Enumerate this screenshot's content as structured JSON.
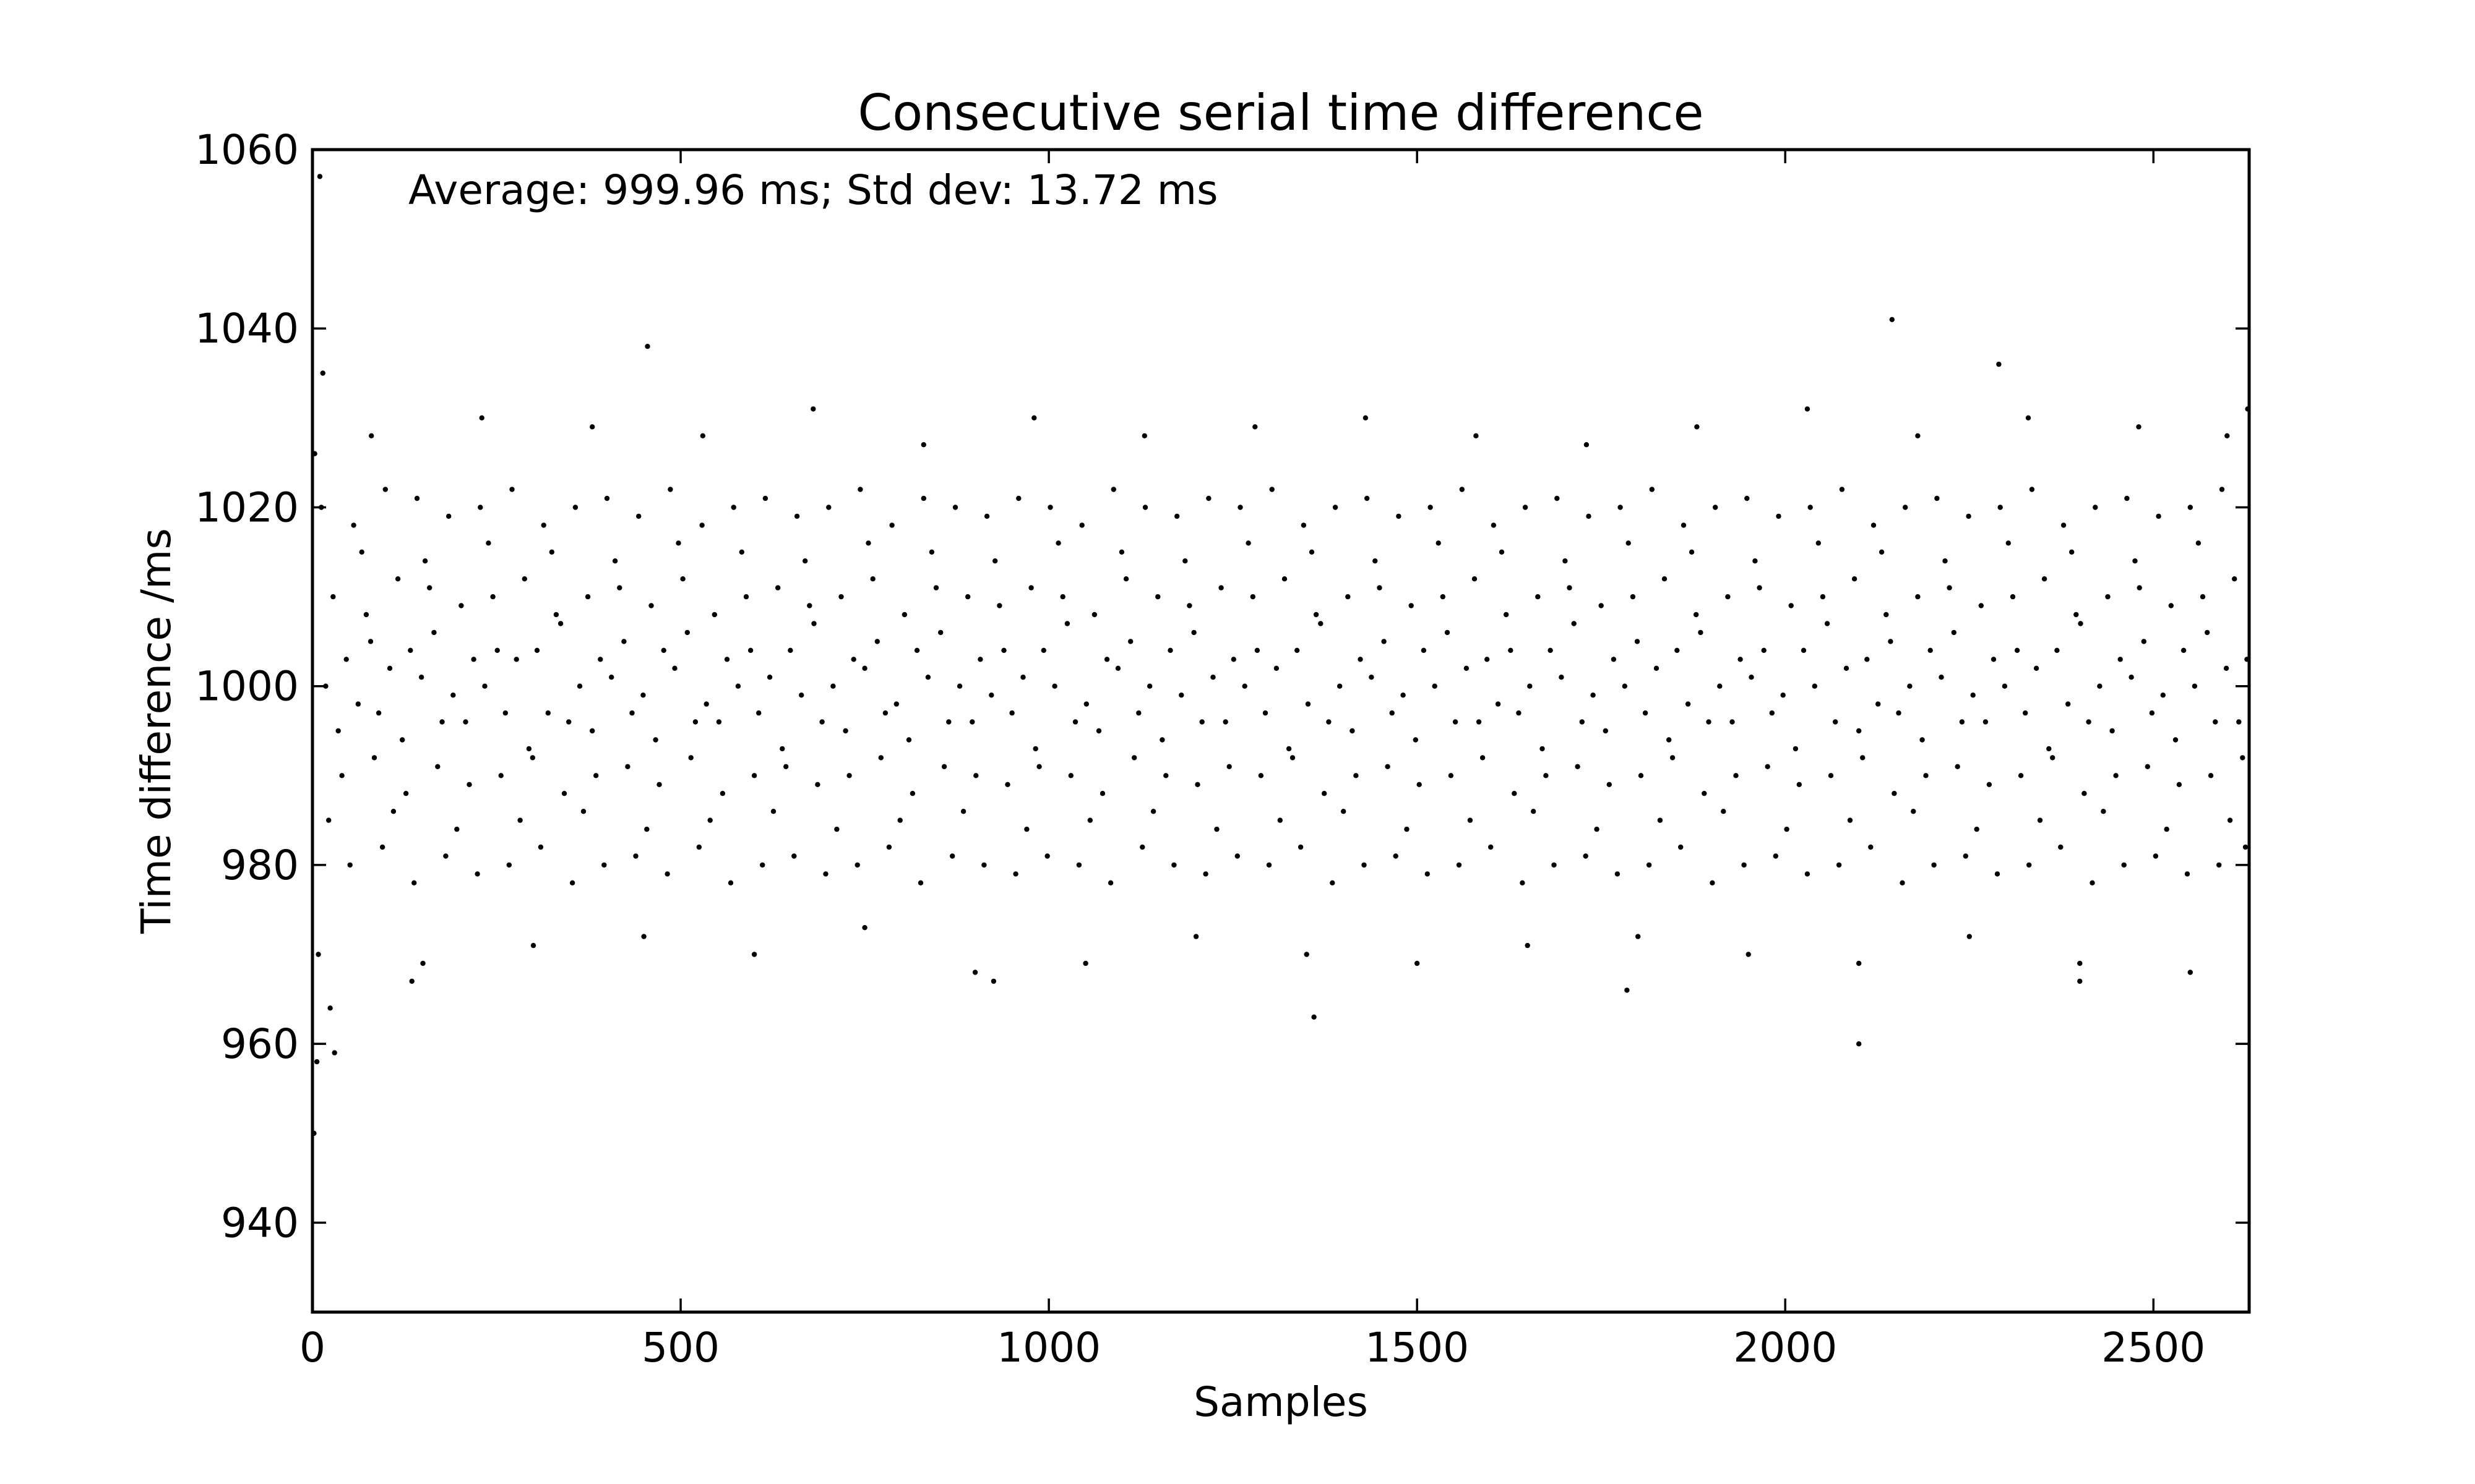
{
  "colors": {
    "background": "#ffffff",
    "marker": "#000000",
    "axes": "#000000"
  },
  "chart_data": {
    "type": "scatter",
    "title": "Consecutive serial time difference",
    "xlabel": "Samples",
    "ylabel": "Time difference /ms",
    "annotation": "Average: 999.96 ms;  Std dev: 13.72 ms",
    "xlim": [
      0,
      2630
    ],
    "ylim": [
      930,
      1060
    ],
    "xticks": [
      0,
      500,
      1000,
      1500,
      2000,
      2500
    ],
    "xtick_labels": [
      "0",
      "500",
      "1000",
      "1500",
      "2000",
      "2500"
    ],
    "yticks": [
      940,
      960,
      980,
      1000,
      1020,
      1040,
      1060
    ],
    "ytick_labels": [
      "940",
      "960",
      "980",
      "1000",
      "1020",
      "1040",
      "1060"
    ],
    "grid": false,
    "legend": "none",
    "marker": "point",
    "sample_count": 2630,
    "average": 999.96,
    "std_dev": 13.72,
    "notable_points": [
      {
        "x": 2,
        "y": 950
      },
      {
        "x": 3,
        "y": 1026
      },
      {
        "x": 6,
        "y": 958
      },
      {
        "x": 10,
        "y": 1057
      },
      {
        "x": 14,
        "y": 1035
      },
      {
        "x": 24,
        "y": 964
      },
      {
        "x": 30,
        "y": 959
      },
      {
        "x": 135,
        "y": 967
      },
      {
        "x": 455,
        "y": 1038
      },
      {
        "x": 925,
        "y": 967
      },
      {
        "x": 1360,
        "y": 963
      },
      {
        "x": 1785,
        "y": 966
      },
      {
        "x": 2100,
        "y": 960
      },
      {
        "x": 2145,
        "y": 1041
      },
      {
        "x": 2290,
        "y": 1036
      },
      {
        "x": 2400,
        "y": 967
      },
      {
        "x": 2628,
        "y": 1031
      }
    ],
    "series": [
      {
        "x": [
          18,
          62,
          105,
          148,
          191,
          234,
          277,
          320,
          363,
          406,
          449,
          492,
          535,
          578,
          621,
          664,
          707,
          750,
          793,
          836,
          879,
          922,
          965,
          1008,
          1051,
          1094,
          1137,
          1180,
          1223,
          1266,
          1309,
          1352,
          1395,
          1438,
          1481,
          1524,
          1567,
          1610,
          1653,
          1696,
          1739,
          1782,
          1825,
          1868,
          1911,
          1954,
          1997,
          2040,
          2083,
          2126,
          2169,
          2212,
          2255,
          2298,
          2341,
          2384,
          2427,
          2470,
          2513,
          2556,
          2599,
          40,
          84,
          127,
          170,
          213,
          256,
          299,
          342,
          385,
          428,
          471,
          514,
          557,
          600,
          643,
          686,
          729,
          772,
          815,
          858,
          901,
          944,
          987,
          1030,
          1073,
          1116,
          1159,
          1202,
          1245,
          1288,
          1331,
          1374,
          1417,
          1460,
          1503,
          1546,
          1589,
          1632,
          1675,
          1718,
          1761,
          1804,
          1847,
          1890,
          1933,
          1976,
          2019,
          2062,
          2105,
          2148,
          2191,
          2234,
          2277,
          2320,
          2363,
          2406,
          2449,
          2492,
          2535,
          2578,
          2621,
          28,
          73,
          116,
          159,
          202,
          245,
          288,
          331,
          374,
          417,
          460,
          503,
          546,
          589,
          632,
          675,
          718,
          761,
          804,
          847,
          890,
          933,
          976,
          1019,
          1062,
          1105,
          1148,
          1191,
          1234,
          1277,
          1320,
          1363,
          1406,
          1449,
          1492,
          1535,
          1578,
          1621,
          1664,
          1707,
          1750,
          1793,
          1836,
          1879,
          1922,
          1965,
          2008,
          2051,
          2094,
          2137,
          2180,
          2223,
          2266,
          2309,
          2352,
          2395,
          2438,
          2481,
          2524,
          2567,
          2610,
          51,
          95,
          138,
          181,
          224,
          267,
          310,
          353,
          396,
          439,
          482,
          525,
          568,
          611,
          654,
          697,
          740,
          783,
          826,
          869,
          912,
          955,
          998,
          1041,
          1084,
          1127,
          1170,
          1213,
          1256,
          1299,
          1342,
          1385,
          1428,
          1471,
          1514,
          1557,
          1600,
          1643,
          1686,
          1729,
          1772,
          1815,
          1858,
          1901,
          1944,
          1987,
          2030,
          2073,
          2116,
          2159,
          2202,
          2245,
          2288,
          2331,
          2374,
          2417,
          2460,
          2503,
          2546,
          2589,
          2625,
          12,
          56,
          99,
          142,
          185,
          228,
          271,
          314,
          357,
          400,
          443,
          486,
          529,
          572,
          615,
          658,
          701,
          744,
          787,
          830,
          873,
          916,
          959,
          1002,
          1045,
          1088,
          1131,
          1174,
          1217,
          1260,
          1303,
          1346,
          1389,
          1432,
          1475,
          1518,
          1561,
          1604,
          1647,
          1690,
          1733,
          1776,
          1819,
          1862,
          1905,
          1948,
          1991,
          2034,
          2077,
          2120,
          2163,
          2206,
          2249,
          2292,
          2335,
          2378,
          2421,
          2464,
          2507,
          2550,
          2593,
          35,
          79,
          122,
          165,
          208,
          251,
          294,
          337,
          380,
          423,
          466,
          509,
          552,
          595,
          638,
          681,
          724,
          767,
          810,
          853,
          896,
          939,
          982,
          1025,
          1068,
          1111,
          1154,
          1197,
          1240,
          1283,
          1326,
          1369,
          1412,
          1455,
          1498,
          1541,
          1584,
          1627,
          1670,
          1713,
          1756,
          1799,
          1842,
          1885,
          1928,
          1971,
          2014,
          2057,
          2100,
          2143,
          2186,
          2229,
          2272,
          2315,
          2358,
          2401,
          2444,
          2487,
          2530,
          2573,
          2616,
          22,
          67,
          110,
          153,
          196,
          239,
          282,
          325,
          368,
          411,
          454,
          497,
          540,
          583,
          626,
          669,
          712,
          755,
          798,
          841,
          884,
          927,
          970,
          1013,
          1056,
          1099,
          1142,
          1185,
          1228,
          1271,
          1314,
          1357,
          1400,
          1443,
          1486,
          1529,
          1572,
          1615,
          1658,
          1701,
          1744,
          1787,
          1830,
          1873,
          1916,
          1959,
          2002,
          2045,
          2088,
          2131,
          2174,
          2217,
          2260,
          2303,
          2346,
          2389,
          2432,
          2475,
          2518,
          2561,
          2604,
          46,
          90,
          133,
          176,
          219,
          262,
          305,
          348,
          391,
          434,
          477,
          520,
          563,
          606,
          649,
          692,
          735,
          778,
          821,
          864,
          907,
          950,
          993,
          1036,
          1079,
          1122,
          1165,
          1208,
          1251,
          1294,
          1337,
          1380,
          1423,
          1466,
          1509,
          1552,
          1595,
          1638,
          1681,
          1724,
          1767,
          1810,
          1853,
          1896,
          1939,
          1982,
          2025,
          2068,
          2111,
          2154,
          2197,
          2240,
          2283,
          2326,
          2369,
          2412,
          2455,
          2498,
          2541,
          2584,
          2627,
          8,
          150,
          300,
          450,
          600,
          750,
          900,
          1050,
          1200,
          1350,
          1500,
          1650,
          1800,
          1950,
          2100,
          2250,
          2400,
          2550,
          80,
          230,
          380,
          530,
          680,
          830,
          980,
          1130,
          1280,
          1430,
          1580,
          1730,
          1880,
          2030,
          2180,
          2330,
          2480,
          2600
        ],
        "y": [
          1000,
          998,
          1002,
          1001,
          999,
          1000,
          1003,
          997,
          1000,
          1001,
          999,
          1002,
          998,
          1000,
          1001,
          999,
          1000,
          1002,
          998,
          1001,
          1000,
          999,
          1001,
          1000,
          998,
          1002,
          1000,
          999,
          1001,
          1000,
          1002,
          998,
          1000,
          1001,
          999,
          1000,
          1002,
          998,
          1000,
          1001,
          999,
          1000,
          1002,
          998,
          1000,
          1001,
          999,
          1000,
          1002,
          998,
          1000,
          1001,
          999,
          1000,
          1002,
          998,
          1000,
          1001,
          999,
          1000,
          1002,
          990,
          992,
          988,
          991,
          989,
          990,
          992,
          988,
          990,
          991,
          989,
          992,
          988,
          990,
          991,
          989,
          990,
          992,
          988,
          991,
          990,
          989,
          991,
          990,
          988,
          992,
          990,
          989,
          991,
          990,
          992,
          988,
          990,
          991,
          989,
          990,
          992,
          988,
          990,
          991,
          989,
          990,
          992,
          988,
          990,
          991,
          989,
          990,
          992,
          988,
          990,
          991,
          989,
          990,
          992,
          988,
          990,
          991,
          989,
          990,
          992,
          1010,
          1008,
          1012,
          1011,
          1009,
          1010,
          1012,
          1008,
          1010,
          1011,
          1009,
          1012,
          1008,
          1010,
          1011,
          1009,
          1010,
          1012,
          1008,
          1011,
          1010,
          1009,
          1011,
          1010,
          1008,
          1012,
          1010,
          1009,
          1011,
          1010,
          1012,
          1008,
          1010,
          1011,
          1009,
          1010,
          1012,
          1008,
          1010,
          1011,
          1009,
          1010,
          1012,
          1008,
          1010,
          1011,
          1009,
          1010,
          1012,
          1008,
          1010,
          1011,
          1009,
          1010,
          1012,
          1008,
          1010,
          1011,
          1009,
          1010,
          1012,
          980,
          982,
          978,
          981,
          979,
          980,
          982,
          978,
          980,
          981,
          979,
          982,
          978,
          980,
          981,
          979,
          980,
          982,
          978,
          981,
          980,
          979,
          981,
          980,
          978,
          982,
          980,
          979,
          981,
          980,
          982,
          978,
          980,
          981,
          979,
          980,
          982,
          978,
          980,
          981,
          979,
          980,
          982,
          978,
          980,
          981,
          979,
          980,
          982,
          978,
          980,
          981,
          979,
          980,
          982,
          978,
          980,
          981,
          979,
          980,
          982,
          1020,
          1018,
          1022,
          1021,
          1019,
          1020,
          1022,
          1018,
          1020,
          1021,
          1019,
          1022,
          1018,
          1020,
          1021,
          1019,
          1020,
          1022,
          1018,
          1021,
          1020,
          1019,
          1021,
          1020,
          1018,
          1022,
          1020,
          1019,
          1021,
          1020,
          1022,
          1018,
          1020,
          1021,
          1019,
          1020,
          1022,
          1018,
          1020,
          1021,
          1019,
          1020,
          1022,
          1018,
          1020,
          1021,
          1019,
          1020,
          1022,
          1018,
          1020,
          1021,
          1019,
          1020,
          1022,
          1018,
          1020,
          1021,
          1019,
          1020,
          1022,
          995,
          1005,
          994,
          1006,
          996,
          1004,
          993,
          1007,
          995,
          1005,
          994,
          1006,
          996,
          1004,
          993,
          1007,
          995,
          1005,
          994,
          1006,
          996,
          1004,
          993,
          1007,
          995,
          1005,
          994,
          1006,
          996,
          1004,
          993,
          1007,
          995,
          1005,
          994,
          1006,
          996,
          1004,
          993,
          1007,
          995,
          1005,
          994,
          1006,
          996,
          1004,
          993,
          1007,
          995,
          1005,
          994,
          1006,
          996,
          1004,
          993,
          1007,
          995,
          1005,
          994,
          1006,
          996,
          985,
          1015,
          986,
          1014,
          984,
          1016,
          985,
          1015,
          986,
          1014,
          984,
          1016,
          985,
          1015,
          986,
          1014,
          984,
          1016,
          985,
          1015,
          986,
          1014,
          984,
          1016,
          985,
          1015,
          986,
          1014,
          984,
          1016,
          985,
          1015,
          986,
          1014,
          984,
          1016,
          985,
          1015,
          986,
          1014,
          984,
          1016,
          985,
          1015,
          986,
          1014,
          984,
          1016,
          985,
          1015,
          986,
          1014,
          984,
          1016,
          985,
          1015,
          986,
          1014,
          984,
          1016,
          985,
          1003,
          997,
          1004,
          996,
          1003,
          997,
          1004,
          996,
          1003,
          997,
          1004,
          996,
          1003,
          997,
          1004,
          996,
          1003,
          997,
          1004,
          996,
          1003,
          997,
          1004,
          996,
          1003,
          997,
          1004,
          996,
          1003,
          997,
          1004,
          996,
          1003,
          997,
          1004,
          996,
          1003,
          997,
          1004,
          996,
          1003,
          997,
          1004,
          996,
          1003,
          997,
          1004,
          996,
          1003,
          997,
          1004,
          996,
          1003,
          997,
          1004,
          996,
          1003,
          997,
          1004,
          996,
          1003,
          970,
          969,
          971,
          972,
          970,
          973,
          968,
          969,
          972,
          970,
          969,
          971,
          972,
          970,
          969,
          972,
          969,
          968,
          1028,
          1030,
          1029,
          1028,
          1031,
          1027,
          1030,
          1028,
          1029,
          1030,
          1028,
          1027,
          1029,
          1031,
          1028,
          1030,
          1029,
          1028
        ]
      }
    ]
  }
}
